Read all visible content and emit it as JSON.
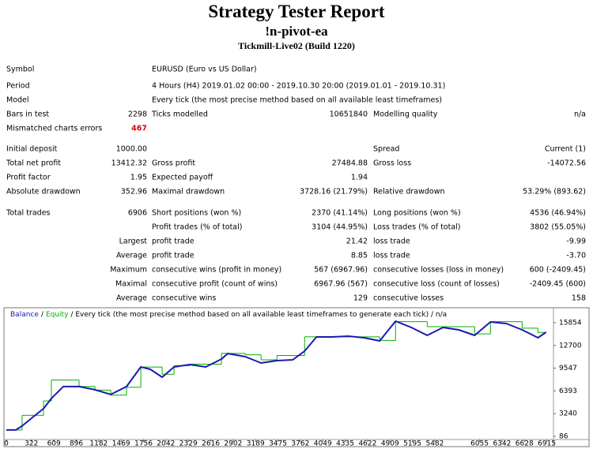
{
  "header": {
    "title": "Strategy Tester Report",
    "expert": "!n-pivot-ea",
    "server": "Tickmill-Live02 (Build 1220)"
  },
  "table": {
    "rows": [
      [
        "Symbol",
        null,
        "EURUSD (Euro vs US Dollar)",
        null,
        null,
        null
      ],
      [
        "Period",
        null,
        "4 Hours (H4) 2019.01.02 00:00 - 2019.10.30 20:00 (2019.01.01 - 2019.10.31)",
        null,
        null,
        null
      ],
      [
        "Model",
        null,
        "Every tick (the most precise method based on all available least timeframes)",
        null,
        null,
        null
      ],
      [
        "Bars in test",
        "2298",
        "Ticks modelled",
        "10651840",
        "Modelling quality",
        "n/a"
      ],
      [
        "Mismatched charts errors",
        "467",
        null,
        null,
        null,
        null
      ],
      [
        "Initial deposit",
        "1000.00",
        null,
        null,
        "Spread",
        "Current (1)"
      ],
      [
        "Total net profit",
        "13412.32",
        "Gross profit",
        "27484.88",
        "Gross loss",
        "-14072.56"
      ],
      [
        "Profit factor",
        "1.95",
        "Expected payoff",
        "1.94",
        null,
        null
      ],
      [
        "Absolute drawdown",
        "352.96",
        "Maximal drawdown",
        "3728.16 (21.79%)",
        "Relative drawdown",
        "53.29% (893.62)"
      ],
      [
        "Total trades",
        "6906",
        "Short positions (won %)",
        "2370 (41.14%)",
        "Long positions (won %)",
        "4536 (46.94%)"
      ],
      [
        null,
        null,
        "Profit trades (% of total)",
        "3104 (44.95%)",
        "Loss trades (% of total)",
        "3802 (55.05%)"
      ],
      [
        null,
        "Largest",
        "profit trade",
        "21.42",
        "loss trade",
        "-9.99"
      ],
      [
        null,
        "Average",
        "profit trade",
        "8.85",
        "loss trade",
        "-3.70"
      ],
      [
        null,
        "Maximum",
        "consecutive wins (profit in money)",
        "567 (6967.96)",
        "consecutive losses (loss in money)",
        "600 (-2409.45)"
      ],
      [
        null,
        "Maximal",
        "consecutive profit (count of wins)",
        "6967.96 (567)",
        "consecutive loss (count of losses)",
        "-2409.45 (600)"
      ],
      [
        null,
        "Average",
        "consecutive wins",
        "129",
        "consecutive losses",
        "158"
      ]
    ]
  },
  "chart_data": {
    "type": "line",
    "legend_separator": "/",
    "subtitle": "/ Every tick (the most precise method based on all available least timeframes to generate each tick) / n/a",
    "x": [
      0,
      121,
      202,
      324,
      476,
      577,
      729,
      931,
      1134,
      1336,
      1538,
      1721,
      1842,
      1994,
      2146,
      2348,
      2551,
      2753,
      2834,
      3057,
      3259,
      3462,
      3664,
      3816,
      3968,
      4170,
      4372,
      4575,
      4777,
      4980,
      5182,
      5385,
      5587,
      5789,
      5992,
      6194,
      6397,
      6599,
      6802,
      6906
    ],
    "series": [
      {
        "name": "Balance",
        "color": "#1a1ab0",
        "values": [
          962,
          962,
          1510,
          2605,
          3918,
          5342,
          6985,
          6985,
          6547,
          5890,
          6985,
          9722,
          9394,
          8299,
          9722,
          10051,
          9722,
          10817,
          11584,
          11146,
          10270,
          10598,
          10708,
          11912,
          13883,
          13883,
          13993,
          13774,
          13336,
          16073,
          15197,
          14102,
          15197,
          14868,
          14102,
          15963,
          15744,
          14868,
          13774,
          14540
        ]
      },
      {
        "name": "Equity",
        "color": "#00b000",
        "step": true,
        "values": [
          962,
          962,
          3000,
          3000,
          5000,
          7900,
          7900,
          7000,
          6500,
          5800,
          6900,
          9700,
          9700,
          8700,
          9900,
          10100,
          10100,
          11600,
          11600,
          11400,
          10700,
          11300,
          11300,
          13900,
          13900,
          13900,
          13900,
          13900,
          13400,
          16000,
          16000,
          15300,
          15300,
          15300,
          14300,
          16000,
          16000,
          15100,
          14500,
          14500
        ]
      }
    ],
    "xlim": [
      -20,
      7000
    ],
    "ylim": [
      -250,
      16290
    ],
    "xticks": [
      0,
      322,
      609,
      896,
      1182,
      1469,
      1756,
      2042,
      2329,
      2616,
      2902,
      3189,
      3475,
      3762,
      4049,
      4335,
      4622,
      4909,
      5195,
      5482,
      6055,
      6342,
      6628,
      6915
    ],
    "yticks": [
      86,
      3240,
      6393,
      9547,
      12700,
      15854
    ]
  }
}
